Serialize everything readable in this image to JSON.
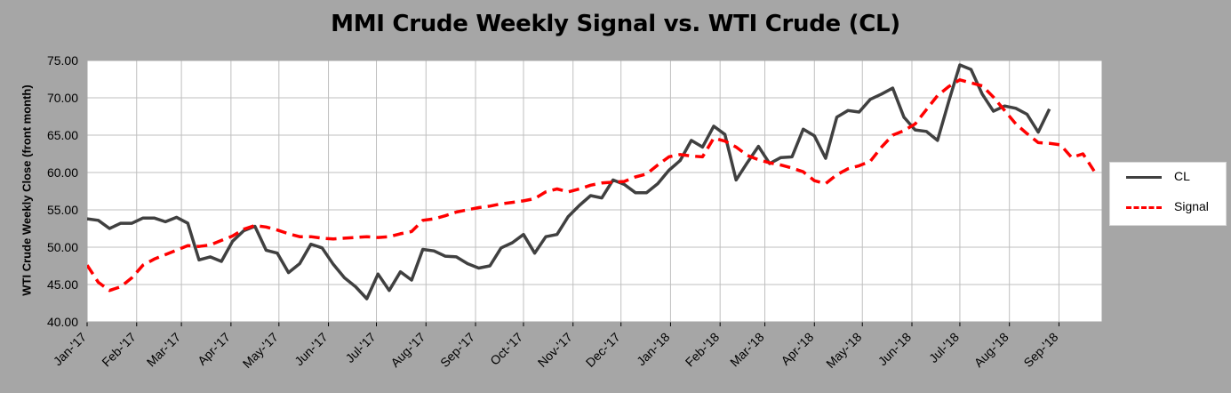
{
  "chart_data": {
    "type": "line",
    "title": "MMI Crude Weekly Signal vs. WTI Crude (CL)",
    "ylabel": "WTI Crude Weekly Close (front month)",
    "xlabel": "",
    "ylim": [
      40,
      75
    ],
    "yticks": [
      "40.00",
      "45.00",
      "50.00",
      "55.00",
      "60.00",
      "65.00",
      "70.00",
      "75.00"
    ],
    "xticks": [
      "Jan-'17",
      "Feb-'17",
      "Mar-'17",
      "Apr-'17",
      "May-'17",
      "Jun-'17",
      "Jul-'17",
      "Aug-'17",
      "Sep-'17",
      "Oct-'17",
      "Nov-'17",
      "Dec-'17",
      "Jan-'18",
      "Feb-'18",
      "Mar-'18",
      "Apr-'18",
      "May-'18",
      "Jun-'18",
      "Jul-'18",
      "Aug-'18",
      "Sep-'18"
    ],
    "x_range": [
      "2017-01-01",
      "2018-09-28"
    ],
    "grid": true,
    "legend_position": "right",
    "series": [
      {
        "name": "CL",
        "color": "#404040",
        "style": "solid",
        "points": [
          [
            "2017-01-01",
            53.8
          ],
          [
            "2017-01-08",
            53.6
          ],
          [
            "2017-01-15",
            52.5
          ],
          [
            "2017-01-22",
            53.2
          ],
          [
            "2017-01-29",
            53.2
          ],
          [
            "2017-02-05",
            53.9
          ],
          [
            "2017-02-12",
            53.9
          ],
          [
            "2017-02-19",
            53.4
          ],
          [
            "2017-02-26",
            54.0
          ],
          [
            "2017-03-05",
            53.2
          ],
          [
            "2017-03-12",
            48.3
          ],
          [
            "2017-03-19",
            48.7
          ],
          [
            "2017-03-26",
            48.1
          ],
          [
            "2017-04-02",
            50.8
          ],
          [
            "2017-04-09",
            52.2
          ],
          [
            "2017-04-16",
            52.8
          ],
          [
            "2017-04-23",
            49.6
          ],
          [
            "2017-04-30",
            49.2
          ],
          [
            "2017-05-07",
            46.6
          ],
          [
            "2017-05-14",
            47.8
          ],
          [
            "2017-05-21",
            50.4
          ],
          [
            "2017-05-28",
            49.9
          ],
          [
            "2017-06-04",
            47.7
          ],
          [
            "2017-06-11",
            45.9
          ],
          [
            "2017-06-18",
            44.7
          ],
          [
            "2017-06-25",
            43.1
          ],
          [
            "2017-07-02",
            46.4
          ],
          [
            "2017-07-09",
            44.2
          ],
          [
            "2017-07-16",
            46.7
          ],
          [
            "2017-07-23",
            45.6
          ],
          [
            "2017-07-30",
            49.7
          ],
          [
            "2017-08-06",
            49.5
          ],
          [
            "2017-08-13",
            48.8
          ],
          [
            "2017-08-20",
            48.7
          ],
          [
            "2017-08-27",
            47.8
          ],
          [
            "2017-09-03",
            47.2
          ],
          [
            "2017-09-10",
            47.5
          ],
          [
            "2017-09-17",
            49.9
          ],
          [
            "2017-09-24",
            50.6
          ],
          [
            "2017-10-01",
            51.7
          ],
          [
            "2017-10-08",
            49.2
          ],
          [
            "2017-10-15",
            51.4
          ],
          [
            "2017-10-22",
            51.7
          ],
          [
            "2017-10-29",
            54.1
          ],
          [
            "2017-11-05",
            55.6
          ],
          [
            "2017-11-12",
            56.9
          ],
          [
            "2017-11-19",
            56.6
          ],
          [
            "2017-11-26",
            59.0
          ],
          [
            "2017-12-03",
            58.4
          ],
          [
            "2017-12-10",
            57.3
          ],
          [
            "2017-12-17",
            57.3
          ],
          [
            "2017-12-24",
            58.5
          ],
          [
            "2017-12-31",
            60.3
          ],
          [
            "2018-01-07",
            61.6
          ],
          [
            "2018-01-14",
            64.3
          ],
          [
            "2018-01-21",
            63.4
          ],
          [
            "2018-01-28",
            66.2
          ],
          [
            "2018-02-04",
            65.1
          ],
          [
            "2018-02-11",
            59.0
          ],
          [
            "2018-02-18",
            61.3
          ],
          [
            "2018-02-25",
            63.5
          ],
          [
            "2018-03-04",
            61.2
          ],
          [
            "2018-03-11",
            62.0
          ],
          [
            "2018-03-18",
            62.1
          ],
          [
            "2018-03-25",
            65.8
          ],
          [
            "2018-04-01",
            64.9
          ],
          [
            "2018-04-08",
            61.9
          ],
          [
            "2018-04-15",
            67.4
          ],
          [
            "2018-04-22",
            68.3
          ],
          [
            "2018-04-29",
            68.1
          ],
          [
            "2018-05-06",
            69.8
          ],
          [
            "2018-05-13",
            70.5
          ],
          [
            "2018-05-20",
            71.3
          ],
          [
            "2018-05-27",
            67.4
          ],
          [
            "2018-06-03",
            65.7
          ],
          [
            "2018-06-10",
            65.5
          ],
          [
            "2018-06-17",
            64.3
          ],
          [
            "2018-06-24",
            69.5
          ],
          [
            "2018-07-01",
            74.4
          ],
          [
            "2018-07-08",
            73.8
          ],
          [
            "2018-07-15",
            70.5
          ],
          [
            "2018-07-22",
            68.2
          ],
          [
            "2018-07-29",
            68.9
          ],
          [
            "2018-08-05",
            68.6
          ],
          [
            "2018-08-12",
            67.8
          ],
          [
            "2018-08-19",
            65.4
          ],
          [
            "2018-08-26",
            68.5
          ]
        ]
      },
      {
        "name": "Signal",
        "color": "#ff0000",
        "style": "dashed",
        "points": [
          [
            "2017-01-01",
            47.6
          ],
          [
            "2017-01-08",
            45.3
          ],
          [
            "2017-01-15",
            44.2
          ],
          [
            "2017-01-22",
            44.7
          ],
          [
            "2017-01-29",
            45.9
          ],
          [
            "2017-02-05",
            47.6
          ],
          [
            "2017-02-12",
            48.4
          ],
          [
            "2017-02-19",
            49.0
          ],
          [
            "2017-02-26",
            49.6
          ],
          [
            "2017-03-05",
            50.2
          ],
          [
            "2017-03-12",
            50.1
          ],
          [
            "2017-03-19",
            50.3
          ],
          [
            "2017-03-26",
            50.9
          ],
          [
            "2017-04-02",
            51.5
          ],
          [
            "2017-04-09",
            52.4
          ],
          [
            "2017-04-16",
            52.9
          ],
          [
            "2017-04-23",
            52.7
          ],
          [
            "2017-04-30",
            52.3
          ],
          [
            "2017-05-07",
            51.8
          ],
          [
            "2017-05-14",
            51.4
          ],
          [
            "2017-05-21",
            51.4
          ],
          [
            "2017-05-28",
            51.2
          ],
          [
            "2017-06-04",
            51.1
          ],
          [
            "2017-06-11",
            51.2
          ],
          [
            "2017-06-18",
            51.3
          ],
          [
            "2017-06-25",
            51.4
          ],
          [
            "2017-07-02",
            51.3
          ],
          [
            "2017-07-09",
            51.4
          ],
          [
            "2017-07-16",
            51.8
          ],
          [
            "2017-07-23",
            52.1
          ],
          [
            "2017-07-30",
            53.6
          ],
          [
            "2017-08-06",
            53.8
          ],
          [
            "2017-08-13",
            54.2
          ],
          [
            "2017-08-20",
            54.7
          ],
          [
            "2017-08-27",
            55.0
          ],
          [
            "2017-09-03",
            55.3
          ],
          [
            "2017-09-10",
            55.5
          ],
          [
            "2017-09-17",
            55.8
          ],
          [
            "2017-09-24",
            56.0
          ],
          [
            "2017-10-01",
            56.2
          ],
          [
            "2017-10-08",
            56.5
          ],
          [
            "2017-10-15",
            57.4
          ],
          [
            "2017-10-22",
            57.8
          ],
          [
            "2017-10-29",
            57.4
          ],
          [
            "2017-11-05",
            57.8
          ],
          [
            "2017-11-12",
            58.3
          ],
          [
            "2017-11-19",
            58.6
          ],
          [
            "2017-11-26",
            58.7
          ],
          [
            "2017-12-03",
            58.8
          ],
          [
            "2017-12-10",
            59.4
          ],
          [
            "2017-12-17",
            59.8
          ],
          [
            "2017-12-24",
            61.0
          ],
          [
            "2017-12-31",
            62.1
          ],
          [
            "2018-01-07",
            62.4
          ],
          [
            "2018-01-14",
            62.2
          ],
          [
            "2018-01-21",
            62.1
          ],
          [
            "2018-01-28",
            64.6
          ],
          [
            "2018-02-04",
            64.2
          ],
          [
            "2018-02-11",
            63.4
          ],
          [
            "2018-02-18",
            62.3
          ],
          [
            "2018-02-25",
            61.7
          ],
          [
            "2018-03-04",
            61.3
          ],
          [
            "2018-03-11",
            61.0
          ],
          [
            "2018-03-18",
            60.6
          ],
          [
            "2018-03-25",
            60.1
          ],
          [
            "2018-04-01",
            58.9
          ],
          [
            "2018-04-08",
            58.5
          ],
          [
            "2018-04-15",
            59.7
          ],
          [
            "2018-04-22",
            60.5
          ],
          [
            "2018-04-29",
            60.9
          ],
          [
            "2018-05-06",
            61.5
          ],
          [
            "2018-05-13",
            63.4
          ],
          [
            "2018-05-20",
            65.0
          ],
          [
            "2018-05-27",
            65.6
          ],
          [
            "2018-06-03",
            66.5
          ],
          [
            "2018-06-10",
            68.4
          ],
          [
            "2018-06-17",
            70.3
          ],
          [
            "2018-06-24",
            71.5
          ],
          [
            "2018-07-01",
            72.4
          ],
          [
            "2018-07-08",
            72.0
          ],
          [
            "2018-07-15",
            71.6
          ],
          [
            "2018-07-22",
            70.1
          ],
          [
            "2018-07-29",
            68.3
          ],
          [
            "2018-08-05",
            66.5
          ],
          [
            "2018-08-12",
            65.2
          ],
          [
            "2018-08-19",
            64.0
          ],
          [
            "2018-08-26",
            63.9
          ],
          [
            "2018-09-02",
            63.7
          ],
          [
            "2018-09-09",
            62.0
          ],
          [
            "2018-09-16",
            62.5
          ],
          [
            "2018-09-23",
            60.2
          ]
        ]
      }
    ]
  }
}
